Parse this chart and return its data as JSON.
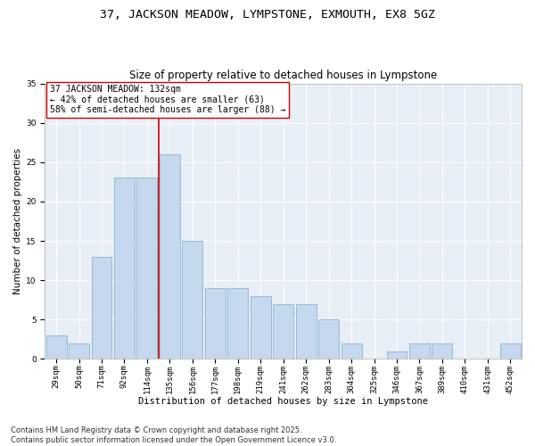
{
  "title_line1": "37, JACKSON MEADOW, LYMPSTONE, EXMOUTH, EX8 5GZ",
  "title_line2": "Size of property relative to detached houses in Lympstone",
  "xlabel": "Distribution of detached houses by size in Lympstone",
  "ylabel": "Number of detached properties",
  "bar_labels": [
    "29sqm",
    "50sqm",
    "71sqm",
    "92sqm",
    "114sqm",
    "135sqm",
    "156sqm",
    "177sqm",
    "198sqm",
    "219sqm",
    "241sqm",
    "262sqm",
    "283sqm",
    "304sqm",
    "325sqm",
    "346sqm",
    "367sqm",
    "389sqm",
    "410sqm",
    "431sqm",
    "452sqm"
  ],
  "bar_values": [
    3,
    2,
    13,
    23,
    23,
    26,
    15,
    9,
    9,
    8,
    7,
    7,
    5,
    2,
    0,
    1,
    2,
    2,
    0,
    0,
    2
  ],
  "bar_color": "#c5d8ed",
  "bar_edgecolor": "#8ab4d4",
  "vline_x": 4.5,
  "vline_color": "#cc0000",
  "annotation_title": "37 JACKSON MEADOW: 132sqm",
  "annotation_line2": "← 42% of detached houses are smaller (63)",
  "annotation_line3": "58% of semi-detached houses are larger (88) →",
  "annotation_box_edgecolor": "#cc0000",
  "annotation_box_facecolor": "#ffffff",
  "ylim": [
    0,
    35
  ],
  "yticks": [
    0,
    5,
    10,
    15,
    20,
    25,
    30,
    35
  ],
  "bg_color": "#e8eef5",
  "footer_line1": "Contains HM Land Registry data © Crown copyright and database right 2025.",
  "footer_line2": "Contains public sector information licensed under the Open Government Licence v3.0.",
  "title_fontsize": 9.5,
  "subtitle_fontsize": 8.5,
  "axis_label_fontsize": 7.5,
  "tick_fontsize": 6.5,
  "annotation_fontsize": 7,
  "footer_fontsize": 6
}
